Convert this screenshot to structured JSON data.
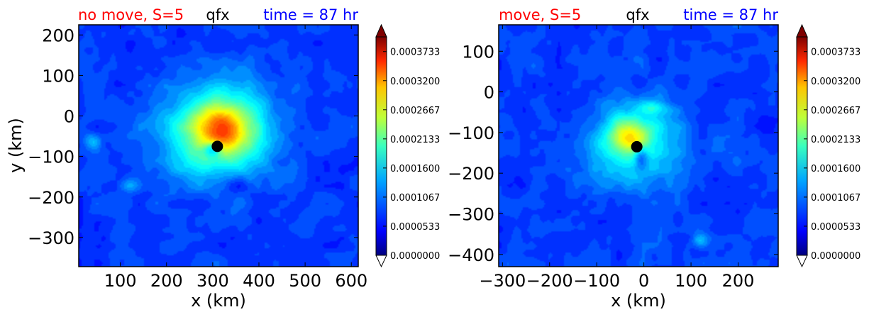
{
  "colors": {
    "title_left": "#ff0000",
    "title_center": "#000000",
    "title_right": "#0000ff",
    "center_marker": "#000000"
  },
  "chart_data": [
    {
      "type": "heatmap",
      "title_left": "no move, S=5",
      "title_center": "qfx",
      "title_right": "time = 87 hr",
      "xlabel": "x (km)",
      "ylabel": "y (km)",
      "xlim": [
        10,
        615
      ],
      "ylim": [
        -372,
        225
      ],
      "xticks": [
        100,
        200,
        300,
        400,
        500,
        600
      ],
      "yticks": [
        200,
        100,
        0,
        -100,
        -200,
        -300
      ],
      "center_marker": {
        "x": 310,
        "y": -75
      },
      "colorscale": "jet",
      "colorbar": {
        "ticks": [
          "0.0000000",
          "0.0000533",
          "0.0001067",
          "0.0001600",
          "0.0002133",
          "0.0002667",
          "0.0003200",
          "0.0003733"
        ],
        "extend": "both"
      },
      "blobs": [
        {
          "x": 310,
          "y": -40,
          "sx": 110,
          "sy": 110,
          "v": 0.00016
        },
        {
          "x": 320,
          "y": -30,
          "sx": 55,
          "sy": 55,
          "v": 0.00012
        },
        {
          "x": 350,
          "y": -170,
          "sx": 25,
          "sy": 25,
          "v": -5e-05
        },
        {
          "x": 300,
          "y": -82,
          "sx": 18,
          "sy": 18,
          "v": -0.0001
        },
        {
          "x": 40,
          "y": -65,
          "sx": 20,
          "sy": 20,
          "v": 6e-05
        },
        {
          "x": 120,
          "y": -170,
          "sx": 20,
          "sy": 20,
          "v": 4e-05
        }
      ]
    },
    {
      "type": "heatmap",
      "title_left": "move, S=5",
      "title_center": "qfx",
      "title_right": "time = 87 hr",
      "xlabel": "x (km)",
      "ylabel": "",
      "xlim": [
        -308,
        285
      ],
      "ylim": [
        -430,
        165
      ],
      "xticks": [
        -300,
        -200,
        -100,
        0,
        100,
        200
      ],
      "yticks": [
        100,
        0,
        -100,
        -200,
        -300,
        -400
      ],
      "center_marker": {
        "x": -15,
        "y": -135
      },
      "colorscale": "jet",
      "colorbar": {
        "ticks": [
          "0.0000000",
          "0.0000533",
          "0.0001067",
          "0.0001600",
          "0.0002133",
          "0.0002667",
          "0.0003200",
          "0.0003733"
        ],
        "extend": "both"
      },
      "blobs": [
        {
          "x": -20,
          "y": -125,
          "sx": 100,
          "sy": 100,
          "v": 9e-05
        },
        {
          "x": -30,
          "y": -110,
          "sx": 40,
          "sy": 40,
          "v": 0.00012
        },
        {
          "x": 20,
          "y": -40,
          "sx": 30,
          "sy": 15,
          "v": 5e-05
        },
        {
          "x": 120,
          "y": -365,
          "sx": 18,
          "sy": 18,
          "v": 7e-05
        },
        {
          "x": -5,
          "y": -160,
          "sx": 15,
          "sy": 30,
          "v": -8e-05
        }
      ]
    }
  ]
}
